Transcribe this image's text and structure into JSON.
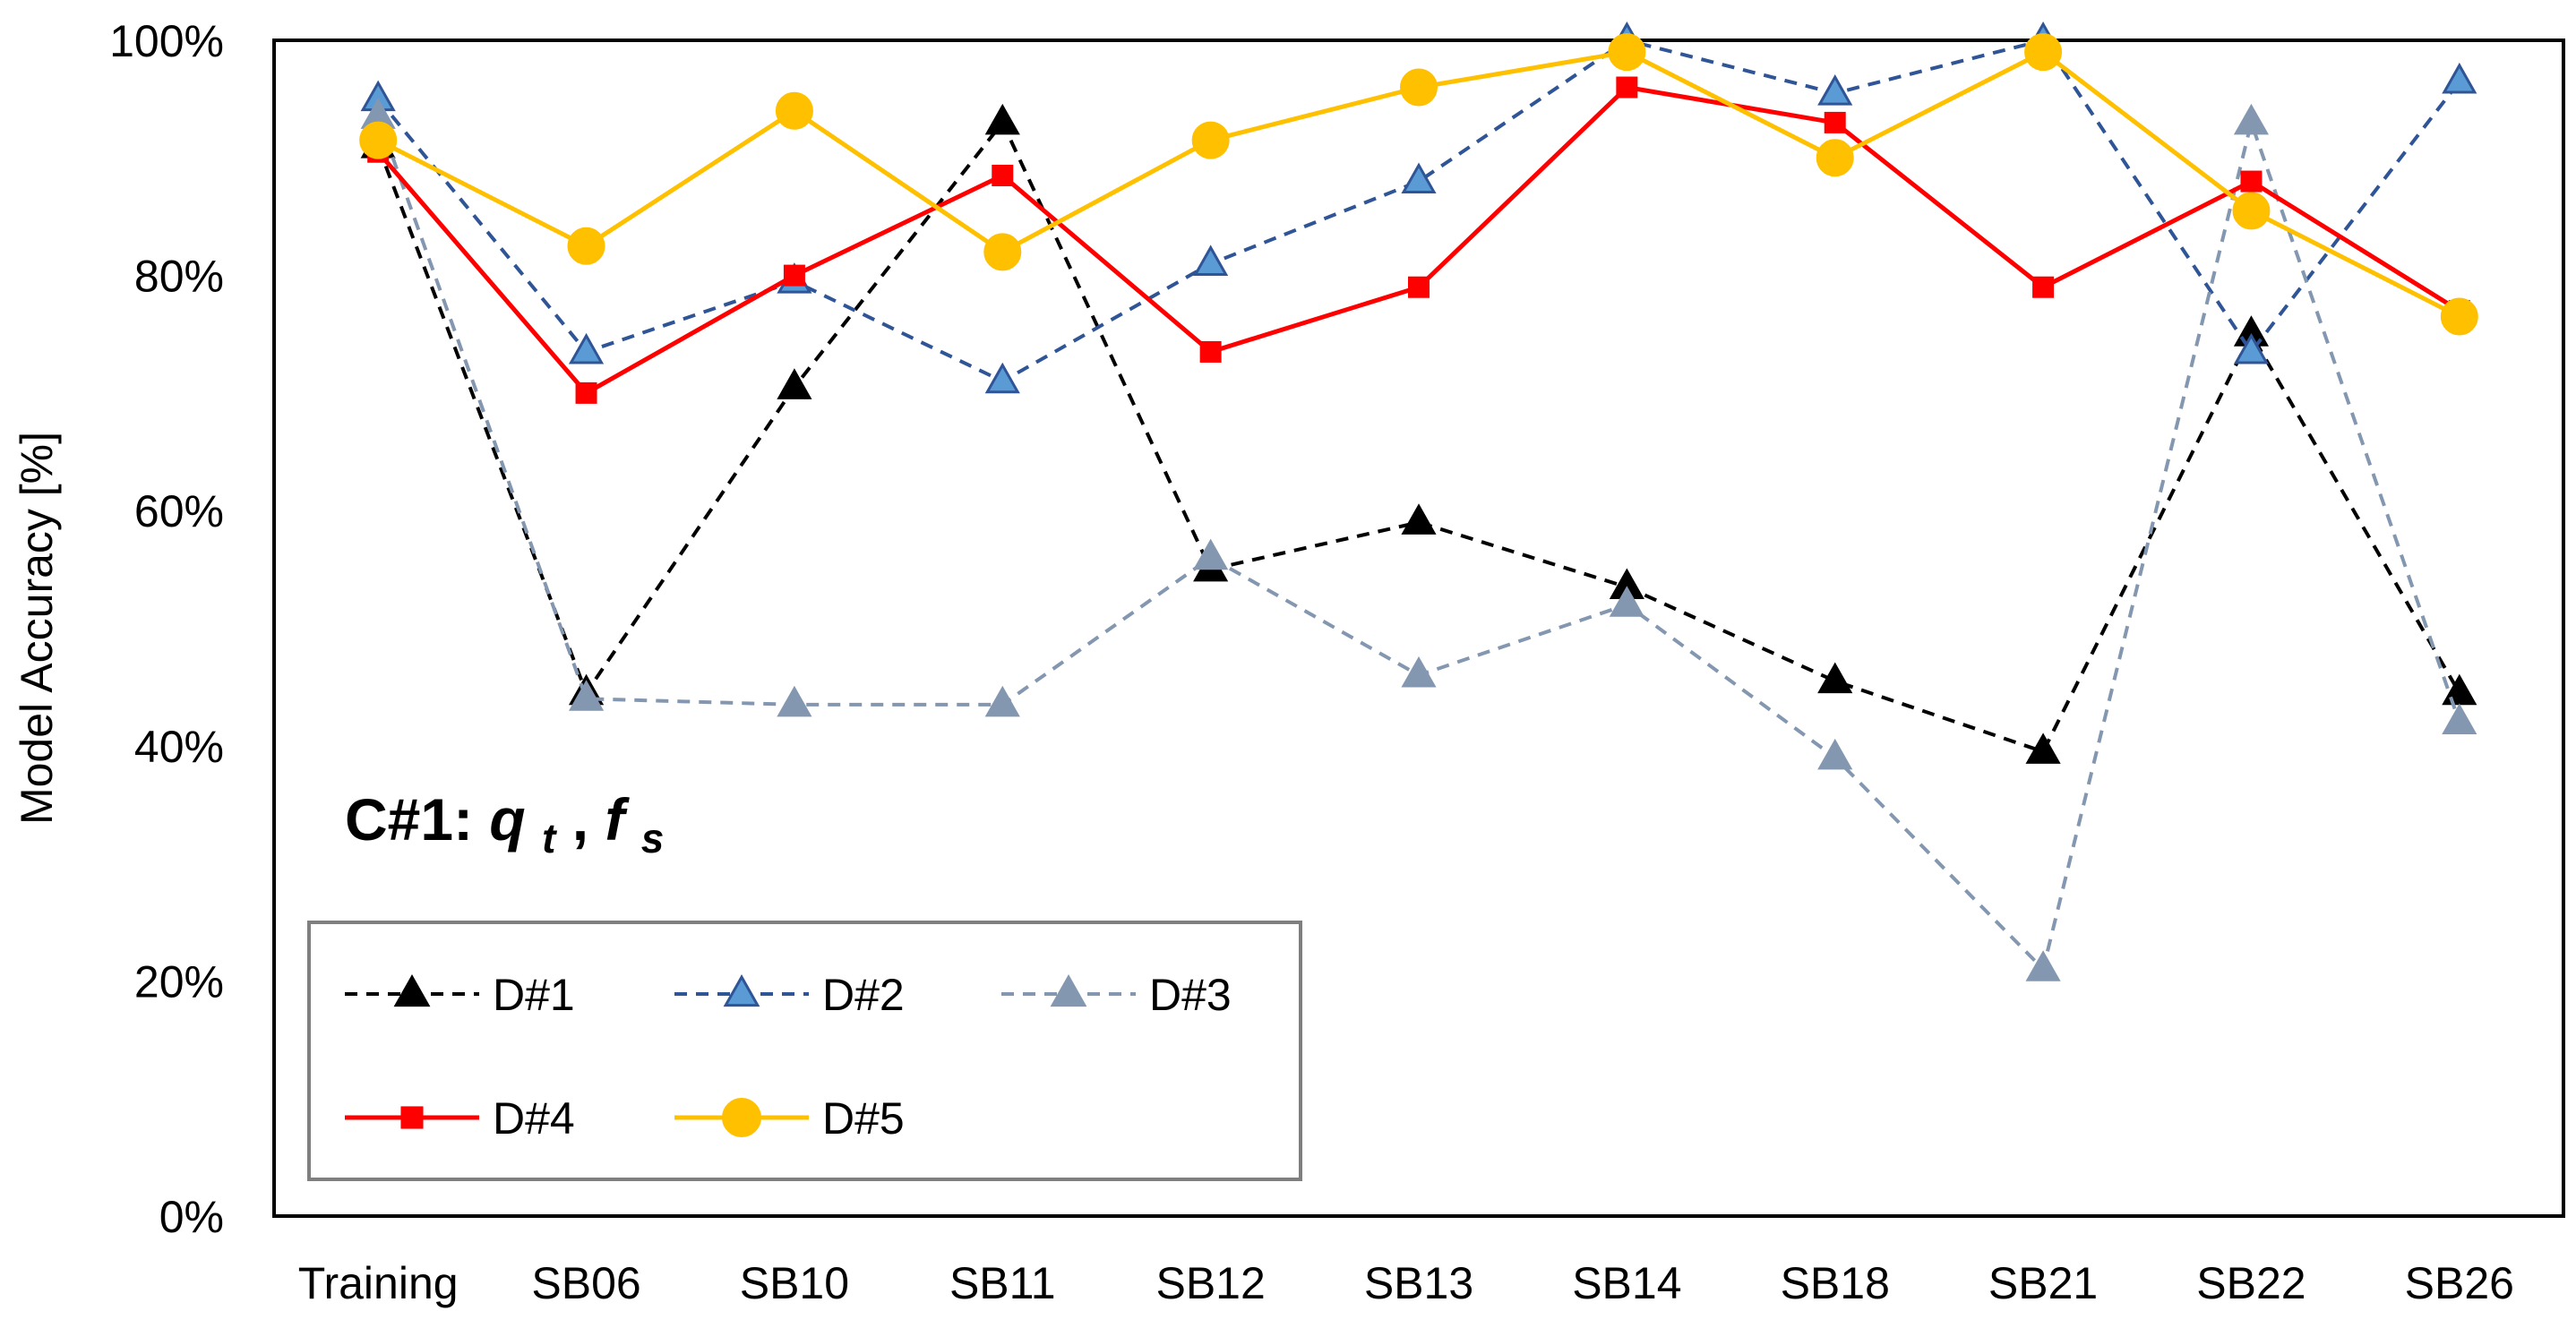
{
  "chart_data": {
    "type": "line",
    "title": "",
    "annotation": {
      "prefix": "C#1: ",
      "var1": "q",
      "var1_sub": "t",
      "separator": ", ",
      "var2": "f",
      "var2_sub": "s"
    },
    "xlabel": "",
    "ylabel": "Model Accuracy [%]",
    "ylim": [
      0,
      100
    ],
    "yticks": [
      0,
      20,
      40,
      60,
      80,
      100
    ],
    "ytick_labels": [
      "0%",
      "20%",
      "40%",
      "60%",
      "80%",
      "100%"
    ],
    "grid": false,
    "legend_position": "bottom-left",
    "categories": [
      "Training",
      "SB06",
      "SB10",
      "SB11",
      "SB12",
      "SB13",
      "SB14",
      "SB18",
      "SB21",
      "SB22",
      "SB26"
    ],
    "series": [
      {
        "name": "D#1",
        "values": [
          91,
          44.5,
          70.5,
          93,
          55,
          59,
          53.5,
          45.5,
          39.5,
          75,
          44.5
        ],
        "color": "#000000",
        "dashed": true,
        "marker": "triangle",
        "marker_fill": "#000000",
        "marker_stroke": "#000000"
      },
      {
        "name": "D#2",
        "values": [
          95,
          73.5,
          79.5,
          71,
          81,
          88,
          100,
          95.5,
          100,
          73.5,
          96.5
        ],
        "color": "#2f5597",
        "dashed": true,
        "marker": "triangle",
        "marker_fill": "#5b9bd5",
        "marker_stroke": "#2f5597"
      },
      {
        "name": "D#3",
        "values": [
          93.5,
          44,
          43.5,
          43.5,
          56,
          46,
          52,
          39,
          21,
          93,
          42
        ],
        "color": "#8497b0",
        "dashed": true,
        "marker": "triangle",
        "marker_fill": "#8497b0",
        "marker_stroke": "#8497b0"
      },
      {
        "name": "D#4",
        "values": [
          90.5,
          70,
          80,
          88.5,
          73.5,
          79,
          96,
          93,
          79,
          88,
          77
        ],
        "color": "#ff0000",
        "dashed": false,
        "marker": "square",
        "marker_fill": "#ff0000",
        "marker_stroke": "#ff0000"
      },
      {
        "name": "D#5",
        "values": [
          91.5,
          82.5,
          94,
          82,
          91.5,
          96,
          99,
          90,
          99,
          85.5,
          76.5
        ],
        "color": "#ffc000",
        "dashed": false,
        "marker": "circle",
        "marker_fill": "#ffc000",
        "marker_stroke": "#ffc000"
      }
    ]
  }
}
